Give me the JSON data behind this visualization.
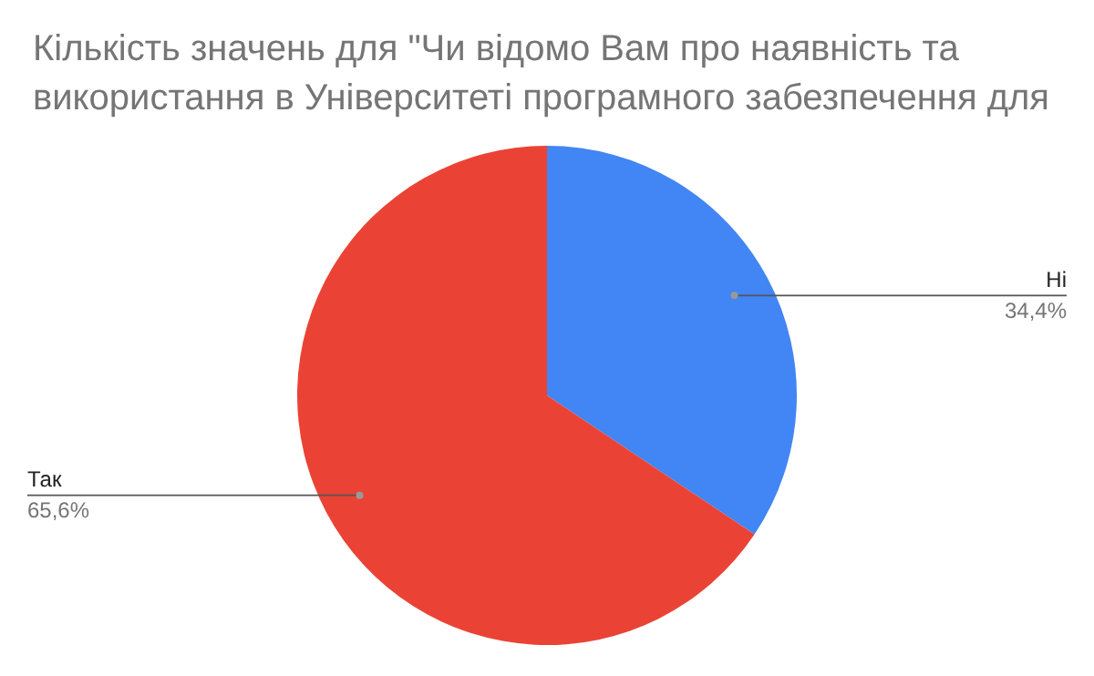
{
  "chart_data": {
    "type": "pie",
    "title": "Кількість значень для \"Чи відомо Вам про наявність та використання в Університеті програмного забезпечення для",
    "categories": [
      "Ні",
      "Так"
    ],
    "values": [
      34.4,
      65.6
    ],
    "colors": [
      "#4285f4",
      "#ea4335"
    ],
    "value_labels": [
      "34,4%",
      "65,6%"
    ],
    "legend": false
  }
}
